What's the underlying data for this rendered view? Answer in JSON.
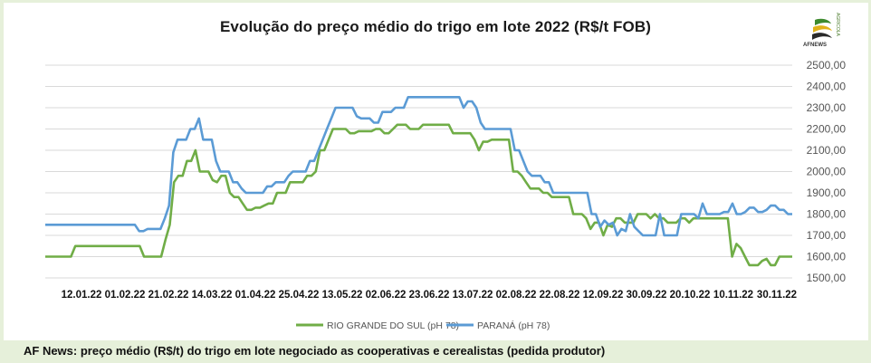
{
  "header": {
    "title": "Evolução do preço médio do trigo em lote 2022 (R$/t FOB)",
    "logo_text": "AFNEWS",
    "logo_side": "AGRICOLA"
  },
  "footer": {
    "note": "AF News: preço médio (R$/t) do trigo em lote negociado as cooperativas e cerealistas (pedida produtor)"
  },
  "colors": {
    "rs": "#70ad47",
    "pr": "#5b9bd5",
    "grid": "#d9d9d9"
  },
  "chart_data": {
    "type": "line",
    "title": "Evolução do preço médio do trigo em lote 2022 (R$/t FOB)",
    "xlabel": "",
    "ylabel": "",
    "ylim": [
      1500,
      2500
    ],
    "ytick_labels": [
      "1500,00",
      "1600,00",
      "1700,00",
      "1800,00",
      "1900,00",
      "2000,00",
      "2100,00",
      "2200,00",
      "2300,00",
      "2400,00",
      "2500,00"
    ],
    "xtick_labels": [
      "12.01.22",
      "01.02.22",
      "21.02.22",
      "14.03.22",
      "01.04.22",
      "25.04.22",
      "13.05.22",
      "02.06.22",
      "23.06.22",
      "13.07.22",
      "02.08.22",
      "22.08.22",
      "12.09.22",
      "30.09.22",
      "20.10.22",
      "10.11.22",
      "30.11.22"
    ],
    "grid": true,
    "legend_position": "bottom",
    "series": [
      {
        "name": "RIO GRANDE DO SUL (pH 78)",
        "values": [
          1600,
          1600,
          1600,
          1600,
          1600,
          1600,
          1600,
          1650,
          1650,
          1650,
          1650,
          1650,
          1650,
          1650,
          1650,
          1650,
          1650,
          1650,
          1650,
          1650,
          1650,
          1650,
          1650,
          1600,
          1600,
          1600,
          1600,
          1600,
          1680,
          1750,
          1950,
          1980,
          1980,
          2050,
          2050,
          2100,
          2000,
          2000,
          2000,
          1960,
          1950,
          1980,
          1980,
          1900,
          1880,
          1880,
          1850,
          1820,
          1820,
          1830,
          1830,
          1840,
          1850,
          1850,
          1900,
          1900,
          1900,
          1950,
          1950,
          1950,
          1950,
          1980,
          1980,
          2000,
          2100,
          2100,
          2150,
          2200,
          2200,
          2200,
          2200,
          2180,
          2180,
          2190,
          2190,
          2190,
          2190,
          2200,
          2200,
          2180,
          2180,
          2200,
          2220,
          2220,
          2220,
          2200,
          2200,
          2200,
          2220,
          2220,
          2220,
          2220,
          2220,
          2220,
          2220,
          2180,
          2180,
          2180,
          2180,
          2180,
          2150,
          2100,
          2140,
          2140,
          2150,
          2150,
          2150,
          2150,
          2150,
          2000,
          2000,
          1980,
          1950,
          1920,
          1920,
          1920,
          1900,
          1900,
          1880,
          1880,
          1880,
          1880,
          1880,
          1800,
          1800,
          1800,
          1780,
          1730,
          1760,
          1760,
          1700,
          1750,
          1740,
          1780,
          1780,
          1760,
          1760,
          1760,
          1800,
          1800,
          1800,
          1780,
          1800,
          1780,
          1780,
          1760,
          1760,
          1760,
          1780,
          1780,
          1760,
          1780,
          1780,
          1780,
          1780,
          1780,
          1780,
          1780,
          1780,
          1780,
          1600,
          1660,
          1640,
          1600,
          1560,
          1560,
          1560,
          1580,
          1590,
          1560,
          1560,
          1600,
          1600,
          1600,
          1600
        ]
      },
      {
        "name": "PARANÁ (pH 78)",
        "values": [
          1750,
          1750,
          1750,
          1750,
          1750,
          1750,
          1750,
          1750,
          1750,
          1750,
          1750,
          1750,
          1750,
          1750,
          1750,
          1750,
          1750,
          1750,
          1750,
          1750,
          1750,
          1750,
          1720,
          1720,
          1730,
          1730,
          1730,
          1730,
          1780,
          1840,
          2090,
          2150,
          2150,
          2150,
          2200,
          2200,
          2250,
          2150,
          2150,
          2150,
          2050,
          2000,
          2000,
          2000,
          1950,
          1950,
          1920,
          1900,
          1900,
          1900,
          1900,
          1900,
          1930,
          1930,
          1950,
          1950,
          1950,
          1980,
          2000,
          2000,
          2000,
          2000,
          2050,
          2050,
          2100,
          2150,
          2200,
          2250,
          2300,
          2300,
          2300,
          2300,
          2300,
          2260,
          2250,
          2250,
          2250,
          2230,
          2230,
          2280,
          2280,
          2280,
          2300,
          2300,
          2300,
          2350,
          2350,
          2350,
          2350,
          2350,
          2350,
          2350,
          2350,
          2350,
          2350,
          2350,
          2350,
          2350,
          2300,
          2330,
          2330,
          2300,
          2230,
          2200,
          2200,
          2200,
          2200,
          2200,
          2200,
          2200,
          2100,
          2100,
          2050,
          2000,
          1980,
          1980,
          1980,
          1950,
          1950,
          1900,
          1900,
          1900,
          1900,
          1900,
          1900,
          1900,
          1900,
          1900,
          1800,
          1800,
          1740,
          1770,
          1750,
          1760,
          1700,
          1730,
          1720,
          1800,
          1740,
          1720,
          1700,
          1700,
          1700,
          1700,
          1800,
          1700,
          1700,
          1700,
          1700,
          1800,
          1800,
          1800,
          1800,
          1780,
          1850,
          1800,
          1800,
          1800,
          1800,
          1810,
          1810,
          1850,
          1800,
          1800,
          1810,
          1830,
          1830,
          1810,
          1810,
          1820,
          1840,
          1840,
          1820,
          1820,
          1800,
          1800
        ]
      }
    ]
  }
}
